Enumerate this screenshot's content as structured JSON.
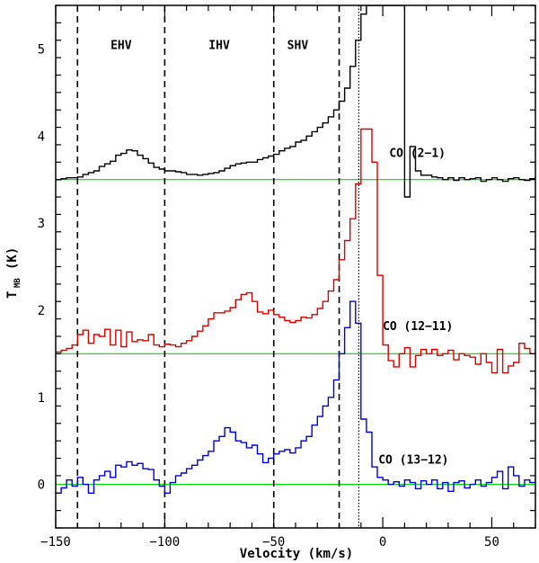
{
  "chart_data": {
    "type": "line",
    "xlabel": "Velocity (km/s)",
    "ylabel_main": "T",
    "ylabel_sub": "MB",
    "ylabel_unit": "(K)",
    "xlim": [
      -150,
      70
    ],
    "ylim": [
      -0.5,
      5.5
    ],
    "x_ticks": [
      -150,
      -100,
      -50,
      0,
      50
    ],
    "y_ticks": [
      0,
      1,
      2,
      3,
      4,
      5
    ],
    "grid": false,
    "region_labels": [
      {
        "text": "EHV",
        "x": -120,
        "y": 5.0
      },
      {
        "text": "IHV",
        "x": -75,
        "y": 5.0
      },
      {
        "text": "SHV",
        "x": -39,
        "y": 5.0
      }
    ],
    "dashed_lines": [
      -140,
      -100,
      -50,
      -20
    ],
    "dotted_line": -11,
    "baselines": [
      {
        "y": 3.5,
        "color": "#00dd00"
      },
      {
        "y": 1.5,
        "color": "#00dd00"
      },
      {
        "y": 0.0,
        "color": "#00dd00"
      }
    ],
    "series": [
      {
        "name": "CO (2-1)",
        "label": "CO (2−1)",
        "label_x": 3,
        "label_y": 3.76,
        "color": "#000000",
        "x_start": -150,
        "x_step": 2.5,
        "values": [
          3.5,
          3.51,
          3.52,
          3.52,
          3.53,
          3.56,
          3.58,
          3.6,
          3.65,
          3.68,
          3.71,
          3.78,
          3.8,
          3.84,
          3.83,
          3.78,
          3.74,
          3.69,
          3.64,
          3.62,
          3.6,
          3.6,
          3.59,
          3.58,
          3.56,
          3.56,
          3.55,
          3.56,
          3.57,
          3.58,
          3.6,
          3.63,
          3.66,
          3.68,
          3.69,
          3.7,
          3.7,
          3.73,
          3.75,
          3.77,
          3.79,
          3.83,
          3.86,
          3.88,
          3.93,
          3.95,
          4.0,
          4.05,
          4.1,
          4.15,
          4.22,
          4.3,
          4.4,
          4.55,
          4.8,
          5.1,
          5.4,
          5.5,
          5.5,
          5.5,
          5.5,
          5.5,
          5.5,
          5.5,
          3.3,
          3.88,
          3.6,
          3.55,
          3.55,
          3.53,
          3.52,
          3.5,
          3.52,
          3.49,
          3.52,
          3.5,
          3.51,
          3.52,
          3.48,
          3.5,
          3.52,
          3.5,
          3.48,
          3.51,
          3.52,
          3.5,
          3.49,
          3.51,
          3.52
        ]
      },
      {
        "name": "CO (12-11)",
        "label": "CO (12−11)",
        "label_x": 0,
        "label_y": 1.77,
        "color": "#dd0000",
        "x_start": -150,
        "x_step": 2.5,
        "values": [
          1.52,
          1.54,
          1.56,
          1.6,
          1.72,
          1.77,
          1.62,
          1.72,
          1.7,
          1.78,
          1.6,
          1.77,
          1.58,
          1.75,
          1.64,
          1.66,
          1.65,
          1.72,
          1.6,
          1.58,
          1.61,
          1.6,
          1.58,
          1.62,
          1.65,
          1.7,
          1.76,
          1.82,
          1.9,
          1.97,
          1.97,
          1.99,
          2.03,
          2.12,
          2.18,
          2.2,
          2.1,
          1.98,
          1.96,
          2.0,
          1.95,
          1.92,
          1.88,
          1.86,
          1.88,
          1.92,
          1.91,
          1.95,
          2.02,
          2.1,
          2.22,
          2.35,
          2.58,
          2.8,
          3.05,
          3.45,
          4.08,
          4.08,
          3.7,
          2.4,
          1.6,
          1.42,
          1.35,
          1.5,
          1.57,
          1.35,
          1.48,
          1.55,
          1.5,
          1.55,
          1.48,
          1.5,
          1.54,
          1.43,
          1.5,
          1.48,
          1.46,
          1.38,
          1.5,
          1.4,
          1.28,
          1.55,
          1.28,
          1.36,
          1.4,
          1.62,
          1.56,
          1.5,
          1.54
        ]
      },
      {
        "name": "CO (13-12)",
        "label": "CO (13−12)",
        "label_x": -2,
        "label_y": 0.24,
        "color": "#0000dd",
        "x_start": -150,
        "x_step": 2.5,
        "values": [
          -0.1,
          -0.04,
          0.05,
          -0.02,
          0.08,
          0.0,
          -0.1,
          0.05,
          0.1,
          0.15,
          0.08,
          0.22,
          0.2,
          0.26,
          0.22,
          0.24,
          0.18,
          0.17,
          0.05,
          -0.02,
          -0.1,
          0.02,
          0.1,
          0.13,
          0.18,
          0.22,
          0.28,
          0.33,
          0.38,
          0.5,
          0.55,
          0.65,
          0.6,
          0.5,
          0.48,
          0.42,
          0.45,
          0.35,
          0.25,
          0.3,
          0.35,
          0.38,
          0.4,
          0.36,
          0.42,
          0.5,
          0.55,
          0.68,
          0.78,
          0.9,
          1.0,
          1.2,
          1.5,
          1.8,
          2.1,
          1.85,
          0.75,
          0.6,
          0.2,
          0.08,
          0.05,
          0.0,
          0.03,
          -0.02,
          0.05,
          0.02,
          -0.05,
          0.04,
          0.0,
          0.05,
          -0.05,
          0.02,
          -0.08,
          0.02,
          0.04,
          -0.04,
          0.0,
          0.05,
          -0.02,
          0.02,
          0.08,
          0.15,
          -0.05,
          0.2,
          0.1,
          -0.02,
          0.05,
          0.02,
          0.05
        ]
      }
    ]
  }
}
